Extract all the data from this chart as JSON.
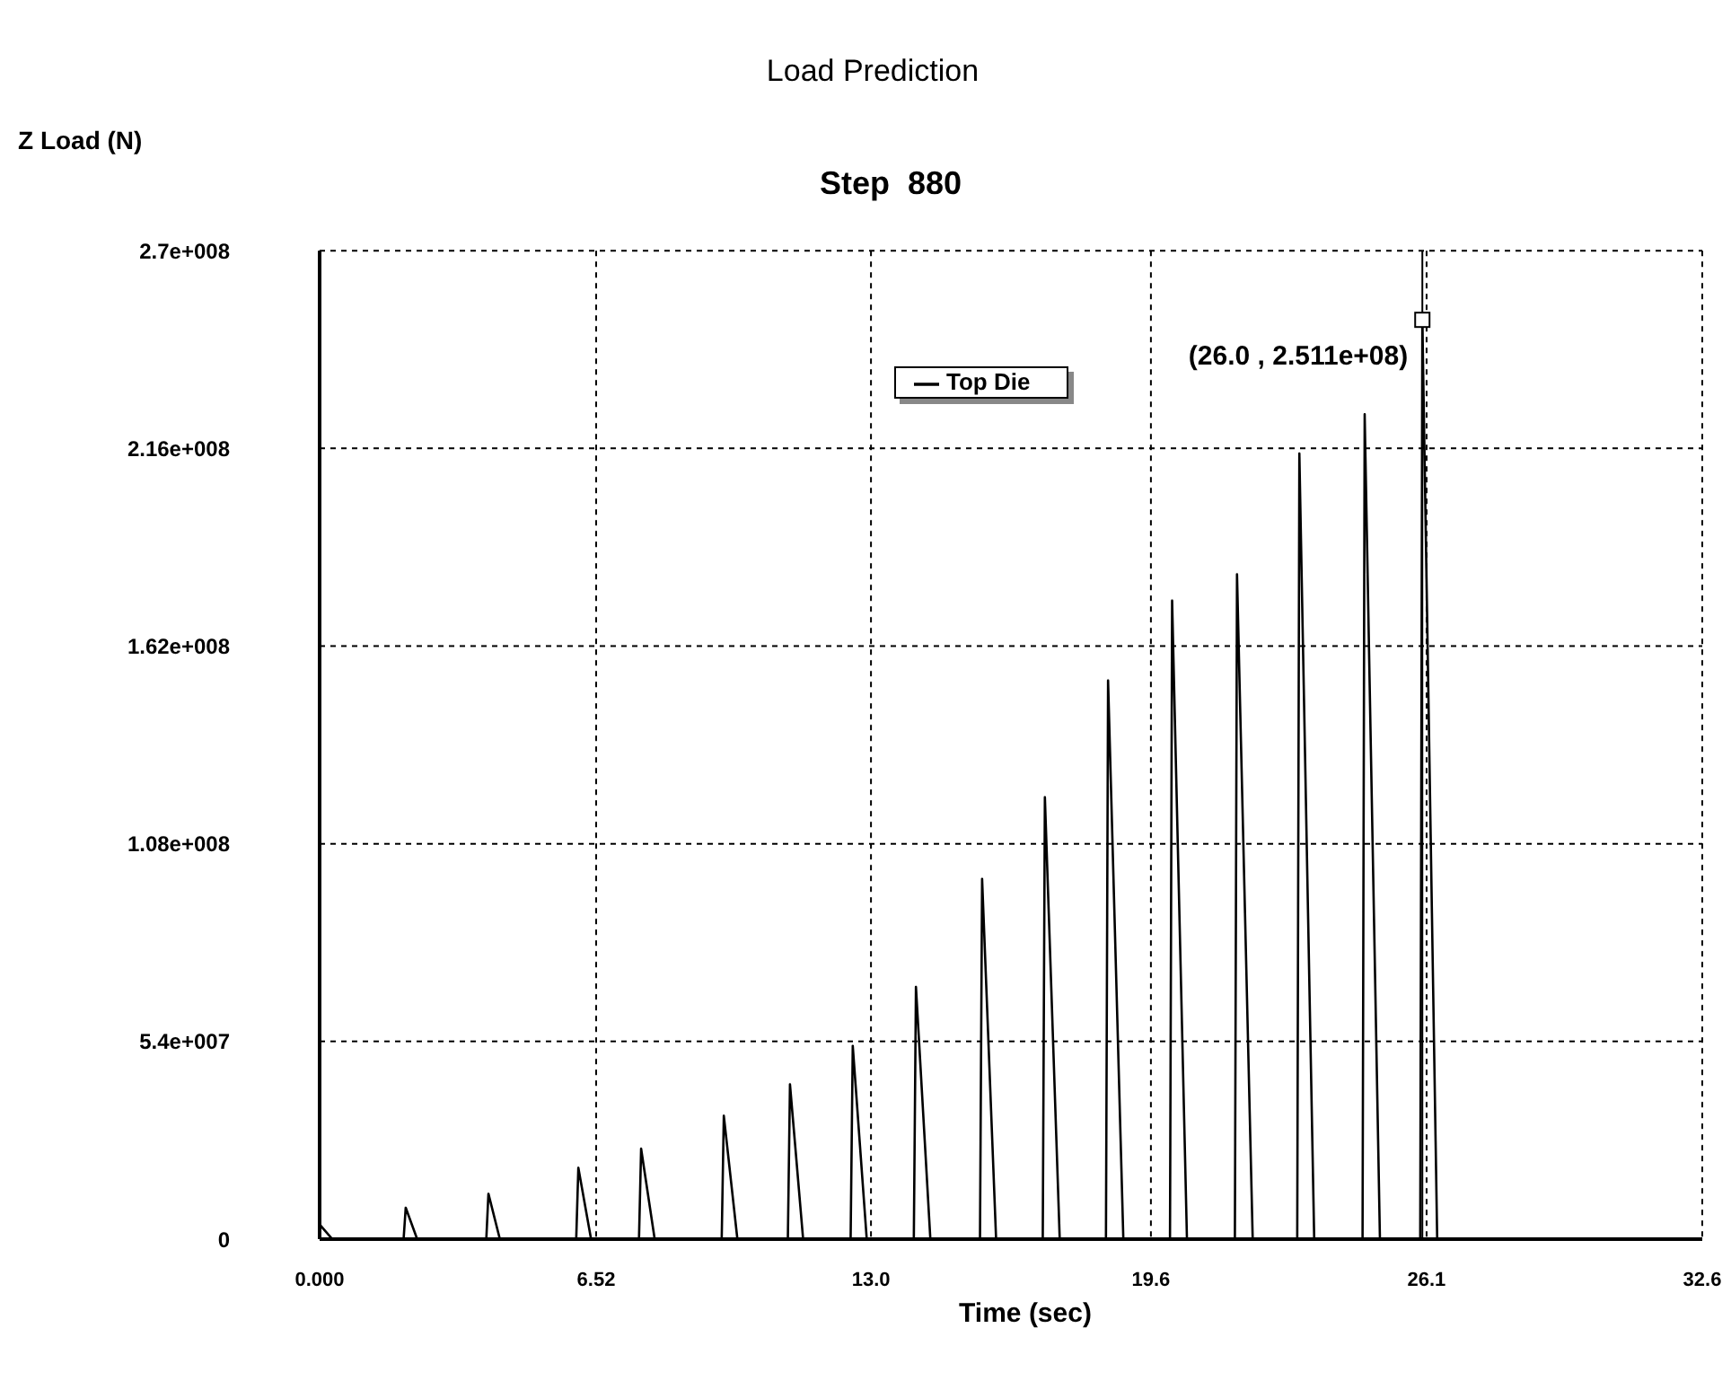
{
  "chart_data": {
    "type": "line",
    "title": "Load Prediction",
    "subtitle": "Step  880",
    "xlabel": "Time (sec)",
    "ylabel": "Z Load (N)",
    "x": [
      0,
      0.3,
      1.98,
      2.03,
      2.3,
      3.93,
      3.98,
      4.25,
      6.05,
      6.1,
      6.4,
      7.53,
      7.58,
      7.9,
      9.48,
      9.53,
      9.85,
      11.04,
      11.09,
      11.4,
      12.52,
      12.57,
      12.9,
      14.01,
      14.06,
      14.4,
      15.57,
      15.62,
      15.95,
      17.05,
      17.1,
      17.45,
      18.54,
      18.59,
      18.95,
      20.05,
      20.1,
      20.45,
      21.58,
      21.63,
      22.0,
      23.05,
      23.1,
      23.45,
      24.59,
      24.64,
      25.0,
      25.95,
      26.0,
      26.35,
      30
    ],
    "series": [
      {
        "name": "Top Die",
        "color": "#000000",
        "values": [
          4000000,
          0,
          0,
          8600000,
          0,
          0,
          12400000,
          0,
          0,
          19500000,
          0,
          0,
          24700000,
          0,
          0,
          33700000,
          0,
          0,
          42300000,
          0,
          0,
          52800000,
          0,
          0,
          68900000,
          0,
          0,
          98400000,
          0,
          0,
          120700000,
          0,
          0,
          152600000,
          0,
          0,
          174400000,
          0,
          0,
          181600000,
          0,
          0,
          214600000,
          0,
          0,
          225300000,
          0,
          0,
          251100000,
          0,
          0
        ]
      }
    ],
    "xlim": [
      0,
      32.6
    ],
    "xticks": [
      {
        "value": 0,
        "label": "0.000"
      },
      6.52,
      {
        "value": 13.0,
        "label": "13.0"
      },
      19.6,
      26.1,
      32.6
    ],
    "ylim": [
      0,
      270000000
    ],
    "yticks": [
      0,
      {
        "value": 54000000,
        "label": "5.4e+007"
      },
      {
        "value": 108000000,
        "label": "1.08e+008"
      },
      {
        "value": 162000000,
        "label": "1.62e+008"
      },
      {
        "value": 216000000,
        "label": "2.16e+008"
      },
      {
        "value": 270000000,
        "label": "2.7e+008"
      }
    ],
    "annotations": [
      {
        "text": "(26.0 , 2.511e+08)",
        "x": 26.0,
        "y": 251100000
      }
    ],
    "ref_lines": [
      {
        "axis": "x",
        "value": 26.0,
        "color": "#000000",
        "line_style": "solid"
      }
    ],
    "grid": true,
    "legend": "top",
    "marker": "none",
    "line_style": "solid"
  }
}
